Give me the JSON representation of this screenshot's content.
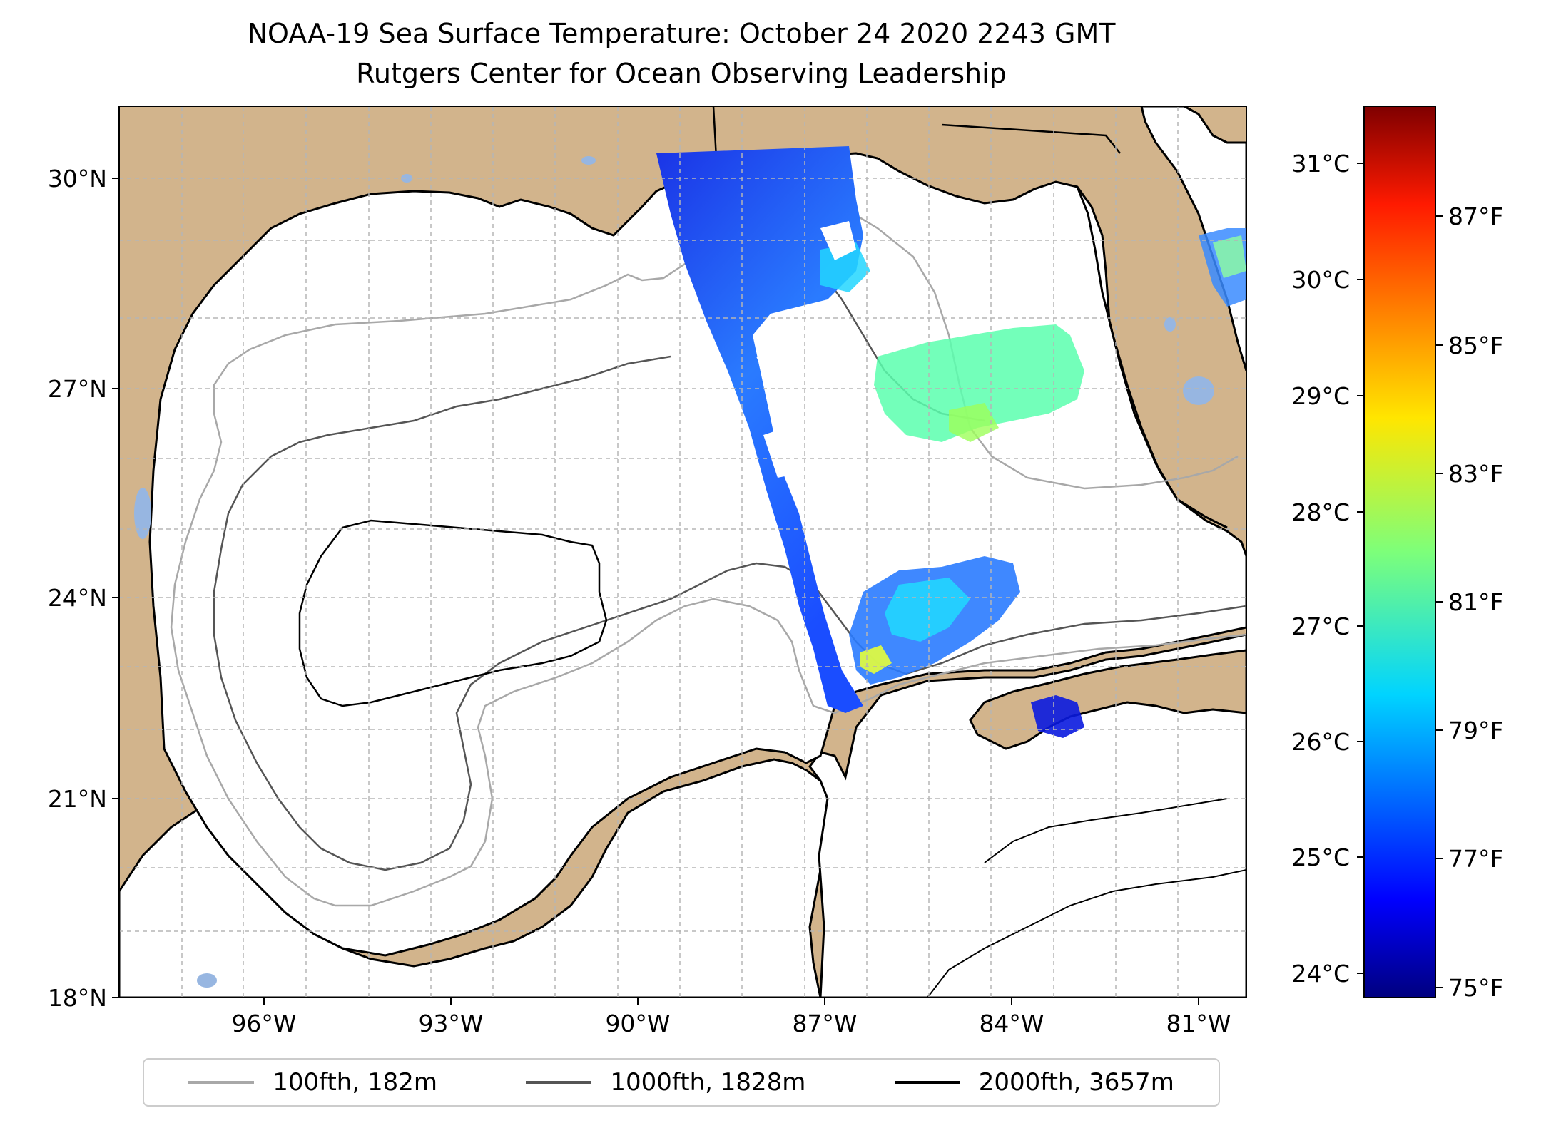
{
  "title": {
    "line1": "NOAA-19 Sea Surface Temperature: October 24 2020 2243 GMT",
    "line2": "Rutgers Center for Ocean Observing Leadership"
  },
  "map": {
    "lat_ticks": [
      "30°N",
      "27°N",
      "24°N",
      "21°N",
      "18°N"
    ],
    "lon_ticks": [
      "96°W",
      "93°W",
      "90°W",
      "87°W",
      "84°W",
      "81°W"
    ],
    "colors": {
      "land": "#d2b48c",
      "lake": "#97b6e1",
      "ocean": "#ffffff",
      "grid": "#b5b5b5"
    }
  },
  "colorbar": {
    "celsius_ticks": [
      "31°C",
      "30°C",
      "29°C",
      "28°C",
      "27°C",
      "26°C",
      "25°C",
      "24°C"
    ],
    "fahrenheit_ticks": [
      "87°F",
      "85°F",
      "83°F",
      "81°F",
      "79°F",
      "77°F",
      "75°F"
    ],
    "colormap": "jet"
  },
  "legend": {
    "items": [
      {
        "label": "100fth, 182m",
        "color": "#a8a8a8"
      },
      {
        "label": "1000fth, 1828m",
        "color": "#555555"
      },
      {
        "label": "2000fth, 3657m",
        "color": "#000000"
      }
    ]
  }
}
